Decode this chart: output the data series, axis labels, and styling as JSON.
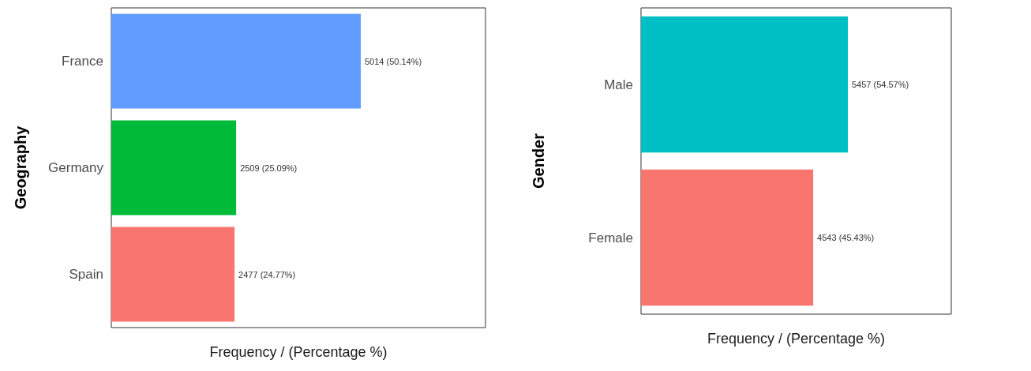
{
  "chart_data": [
    {
      "type": "bar",
      "orientation": "horizontal",
      "categories": [
        "France",
        "Germany",
        "Spain"
      ],
      "values": [
        5014,
        2509,
        2477
      ],
      "colors": [
        "#619cff",
        "#00ba38",
        "#f8766d"
      ],
      "value_labels": [
        "5014 (50.14%)",
        "2509 (25.09%)",
        "2477 (24.77%)"
      ],
      "xlabel": "Frequency / (Percentage %)",
      "ylabel": "Geography",
      "tick_labels": "y",
      "grid": false
    },
    {
      "type": "bar",
      "orientation": "horizontal",
      "categories": [
        "Male",
        "Female"
      ],
      "values": [
        5457,
        4543
      ],
      "colors": [
        "#00bfc4",
        "#f8766d"
      ],
      "value_labels": [
        "5457 (54.57%)",
        "4543 (45.43%)"
      ],
      "xlabel": "Frequency / (Percentage %)",
      "ylabel": "Gender",
      "tick_labels": "y",
      "grid": false
    }
  ]
}
